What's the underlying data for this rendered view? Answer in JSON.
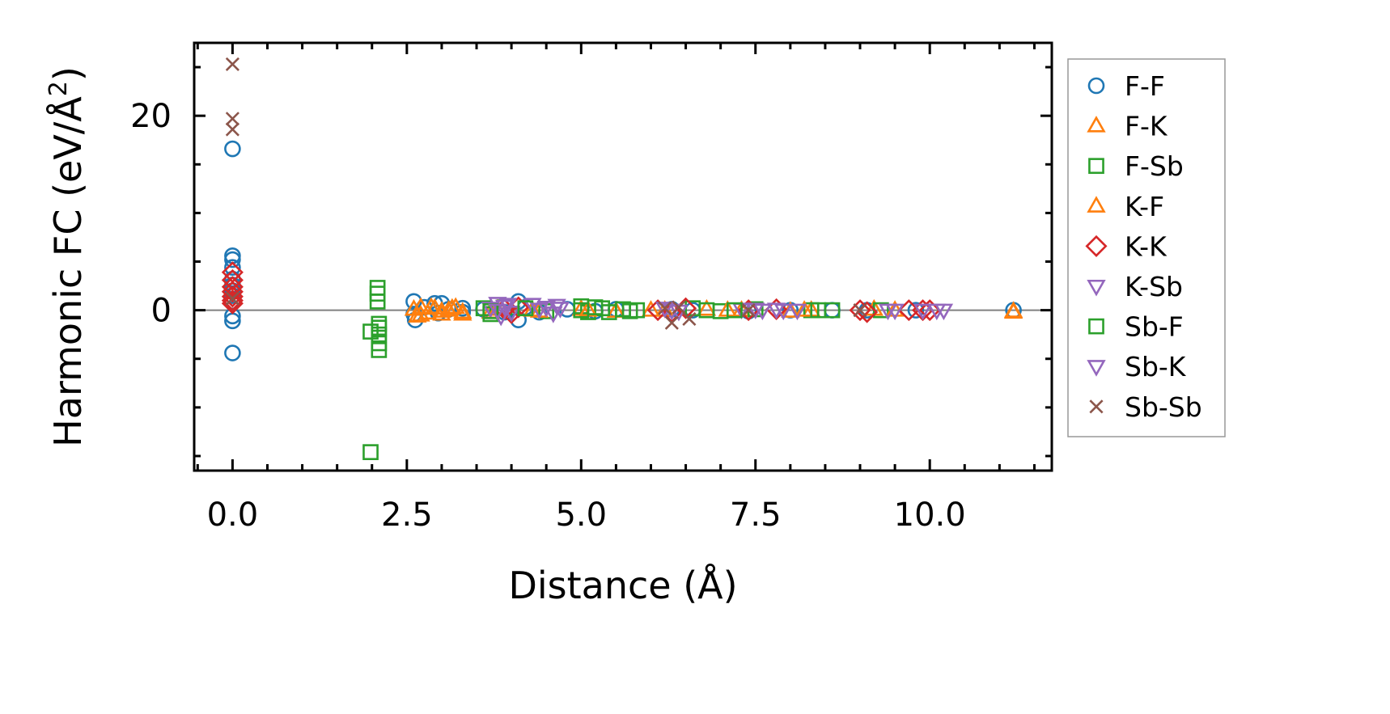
{
  "chart_data": {
    "type": "scatter",
    "xlabel": "Distance (Å)",
    "ylabel": "Harmonic FC (eV/Å²)",
    "ylabel_main": "Harmonic FC (eV/Å",
    "ylabel_sup": "2",
    "ylabel_end": ")",
    "xlim": [
      -0.55,
      11.75
    ],
    "ylim": [
      -16.5,
      27.5
    ],
    "x_ticks": [
      0.0,
      2.5,
      5.0,
      7.5,
      10.0
    ],
    "x_tick_labels": [
      "0.0",
      "2.5",
      "5.0",
      "7.5",
      "10.0"
    ],
    "y_ticks": [
      0,
      20
    ],
    "y_tick_labels": [
      "0",
      "20"
    ],
    "grid": false,
    "zero_line": true,
    "legend_position": "outside-right",
    "series": [
      {
        "name": "F-F",
        "marker": "circle",
        "color": "#1f77b4",
        "points": [
          [
            0,
            16.6
          ],
          [
            0,
            5.6
          ],
          [
            0,
            5.2
          ],
          [
            0,
            4.4
          ],
          [
            0,
            3.2
          ],
          [
            0,
            2.6
          ],
          [
            0,
            2.0
          ],
          [
            0,
            1.5
          ],
          [
            0,
            0.9
          ],
          [
            0,
            -0.6
          ],
          [
            0,
            -1.1
          ],
          [
            0,
            -4.4
          ],
          [
            2.6,
            0.9
          ],
          [
            2.6,
            -0.4
          ],
          [
            2.62,
            -1.0
          ],
          [
            2.75,
            0.3
          ],
          [
            2.9,
            0.7
          ],
          [
            2.95,
            -0.3
          ],
          [
            3.0,
            0.7
          ],
          [
            3.1,
            0.1
          ],
          [
            3.3,
            -0.2
          ],
          [
            3.3,
            0.2
          ],
          [
            3.6,
            0.1
          ],
          [
            3.9,
            -0.2
          ],
          [
            4.1,
            0.9
          ],
          [
            4.1,
            -1.0
          ],
          [
            4.2,
            0.3
          ],
          [
            4.4,
            -0.2
          ],
          [
            4.8,
            0.1
          ],
          [
            5.2,
            -0.1
          ],
          [
            5.5,
            0.1
          ],
          [
            6.3,
            0.1
          ],
          [
            6.6,
            0.0
          ],
          [
            7.4,
            -0.1
          ],
          [
            8.0,
            0.0
          ],
          [
            8.6,
            0.0
          ],
          [
            9.1,
            0.0
          ],
          [
            9.8,
            0.0
          ],
          [
            11.2,
            0.0
          ]
        ]
      },
      {
        "name": "F-K",
        "marker": "triangle-up",
        "color": "#ff7f0e",
        "points": [
          [
            2.6,
            0.1
          ],
          [
            2.65,
            -0.6
          ],
          [
            2.7,
            0.3
          ],
          [
            2.8,
            -0.3
          ],
          [
            2.9,
            0.2
          ],
          [
            3.0,
            -0.4
          ],
          [
            3.1,
            0.0
          ],
          [
            3.2,
            0.3
          ],
          [
            3.3,
            -0.2
          ],
          [
            3.7,
            -0.2
          ],
          [
            4.3,
            0.0
          ],
          [
            5.0,
            0.1
          ],
          [
            5.5,
            -0.1
          ],
          [
            6.0,
            0.0
          ],
          [
            6.8,
            0.1
          ],
          [
            7.3,
            0.0
          ],
          [
            8.0,
            -0.1
          ],
          [
            8.3,
            0.0
          ],
          [
            9.2,
            0.1
          ],
          [
            11.2,
            -0.2
          ]
        ]
      },
      {
        "name": "F-Sb",
        "marker": "square",
        "color": "#2ca02c",
        "points": [
          [
            1.98,
            -14.6
          ],
          [
            1.98,
            -2.2
          ],
          [
            2.08,
            2.3
          ],
          [
            2.08,
            1.7
          ],
          [
            2.1,
            -1.4
          ],
          [
            2.1,
            -2.5
          ],
          [
            2.1,
            -3.4
          ],
          [
            2.1,
            -4.1
          ],
          [
            3.6,
            0.2
          ],
          [
            3.7,
            -0.4
          ],
          [
            3.9,
            0.3
          ],
          [
            4.5,
            -0.1
          ],
          [
            5.0,
            0.4
          ],
          [
            5.1,
            -0.2
          ],
          [
            5.3,
            0.2
          ],
          [
            5.4,
            -0.2
          ],
          [
            5.6,
            0.1
          ],
          [
            5.8,
            0.0
          ],
          [
            6.6,
            0.2
          ],
          [
            7.0,
            -0.1
          ],
          [
            7.5,
            0.1
          ],
          [
            8.3,
            0.0
          ],
          [
            8.6,
            0.0
          ],
          [
            9.3,
            0.0
          ]
        ]
      },
      {
        "name": "K-F",
        "marker": "triangle-up",
        "color": "#ff7f0e",
        "points": [
          [
            2.7,
            -0.5
          ],
          [
            2.85,
            0.3
          ],
          [
            3.0,
            -0.1
          ],
          [
            3.15,
            0.2
          ],
          [
            3.3,
            -0.4
          ],
          [
            3.8,
            0.1
          ],
          [
            4.4,
            -0.1
          ],
          [
            5.1,
            0.0
          ],
          [
            6.2,
            0.0
          ],
          [
            7.1,
            0.0
          ],
          [
            8.2,
            0.0
          ],
          [
            9.5,
            0.0
          ],
          [
            11.2,
            -0.1
          ]
        ]
      },
      {
        "name": "K-K",
        "marker": "diamond",
        "color": "#d62728",
        "points": [
          [
            0,
            3.9
          ],
          [
            0,
            3.1
          ],
          [
            0,
            2.4
          ],
          [
            0,
            1.9
          ],
          [
            0,
            1.4
          ],
          [
            0,
            1.0
          ],
          [
            0,
            0.7
          ],
          [
            3.9,
            0.1
          ],
          [
            4.0,
            -0.3
          ],
          [
            4.1,
            0.3
          ],
          [
            6.1,
            0.0
          ],
          [
            6.3,
            -0.2
          ],
          [
            6.5,
            0.2
          ],
          [
            7.4,
            0.0
          ],
          [
            7.8,
            0.1
          ],
          [
            9.0,
            0.0
          ],
          [
            9.1,
            -0.2
          ],
          [
            9.7,
            0.0
          ],
          [
            9.9,
            0.0
          ],
          [
            10.0,
            0.0
          ]
        ]
      },
      {
        "name": "K-Sb",
        "marker": "triangle-down",
        "color": "#9467bd",
        "points": [
          [
            3.7,
            0.2
          ],
          [
            3.8,
            0.7
          ],
          [
            3.85,
            -0.6
          ],
          [
            3.9,
            0.4
          ],
          [
            4.0,
            -0.2
          ],
          [
            4.3,
            0.6
          ],
          [
            4.5,
            0.3
          ],
          [
            4.6,
            -0.3
          ],
          [
            4.7,
            0.2
          ],
          [
            6.2,
            0.2
          ],
          [
            6.4,
            -0.1
          ],
          [
            7.3,
            0.1
          ],
          [
            7.6,
            0.0
          ],
          [
            7.8,
            0.1
          ],
          [
            8.1,
            0.0
          ],
          [
            9.5,
            0.0
          ],
          [
            9.9,
            0.0
          ],
          [
            10.2,
            0.0
          ]
        ]
      },
      {
        "name": "Sb-F",
        "marker": "square",
        "color": "#2ca02c",
        "points": [
          [
            2.08,
            0.9
          ],
          [
            2.1,
            -1.8
          ],
          [
            3.7,
            -0.1
          ],
          [
            4.2,
            0.2
          ],
          [
            5.0,
            0.0
          ],
          [
            5.2,
            0.3
          ],
          [
            5.7,
            -0.1
          ],
          [
            6.8,
            0.0
          ],
          [
            7.2,
            0.0
          ],
          [
            8.4,
            0.0
          ]
        ]
      },
      {
        "name": "Sb-K",
        "marker": "triangle-down",
        "color": "#9467bd",
        "points": [
          [
            3.8,
            0.0
          ],
          [
            3.95,
            0.6
          ],
          [
            4.4,
            0.1
          ],
          [
            4.65,
            0.5
          ],
          [
            6.3,
            0.0
          ],
          [
            7.5,
            0.1
          ],
          [
            7.9,
            0.0
          ],
          [
            9.4,
            0.0
          ],
          [
            10.1,
            0.0
          ]
        ]
      },
      {
        "name": "Sb-Sb",
        "marker": "x",
        "color": "#8c564b",
        "points": [
          [
            0,
            25.3
          ],
          [
            0,
            19.7
          ],
          [
            0,
            18.6
          ],
          [
            0,
            1.2
          ],
          [
            6.2,
            0.2
          ],
          [
            6.3,
            -1.3
          ],
          [
            6.4,
            0.3
          ],
          [
            6.55,
            -0.9
          ],
          [
            7.4,
            0.0
          ],
          [
            9.0,
            0.0
          ]
        ]
      }
    ]
  }
}
